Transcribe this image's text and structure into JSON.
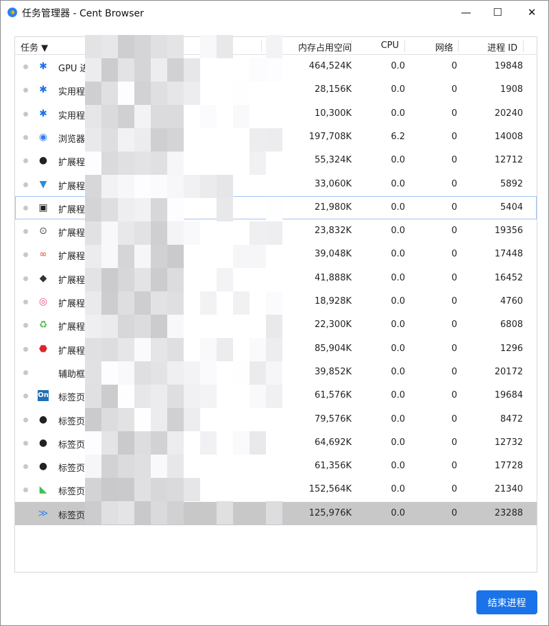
{
  "window": {
    "title": "任务管理器 - Cent Browser",
    "minimize": "—",
    "maximize": "☐",
    "close": "✕"
  },
  "header": {
    "task": "任务",
    "sort_indicator": "▼",
    "memory": "内存占用空间",
    "cpu": "CPU",
    "network": "网络",
    "pid": "进程 ID"
  },
  "rows": [
    {
      "icon": "puzzle-icon",
      "glyph": "✱",
      "color": "#1a73e8",
      "name": "GPU 进程",
      "mem": "464,524K",
      "cpu": "0.0",
      "net": "0",
      "pid": "19848"
    },
    {
      "icon": "puzzle-icon",
      "glyph": "✱",
      "color": "#1a73e8",
      "name": "实用程序：",
      "mem": "28,156K",
      "cpu": "0.0",
      "net": "0",
      "pid": "1908"
    },
    {
      "icon": "puzzle-icon",
      "glyph": "✱",
      "color": "#1a73e8",
      "name": "实用程序：",
      "mem": "10,300K",
      "cpu": "0.0",
      "net": "0",
      "pid": "20240"
    },
    {
      "icon": "cent-browser-icon",
      "glyph": "◉",
      "color": "#2f7cf6",
      "name": "浏览器",
      "mem": "197,708K",
      "cpu": "6.2",
      "net": "0",
      "pid": "14008"
    },
    {
      "icon": "extension-icon",
      "glyph": "●",
      "color": "#222",
      "name": "扩展程序：",
      "mem": "55,324K",
      "cpu": "0.0",
      "net": "0",
      "pid": "12712"
    },
    {
      "icon": "extension-icon",
      "glyph": "▼",
      "color": "#2a8bd8",
      "name": "扩展程序：",
      "mem": "33,060K",
      "cpu": "0.0",
      "net": "0",
      "pid": "5892"
    },
    {
      "icon": "monitor-icon",
      "glyph": "▣",
      "color": "#222",
      "name": "扩展程序：",
      "mem": "21,980K",
      "cpu": "0.0",
      "net": "0",
      "pid": "5404"
    },
    {
      "icon": "code-icon",
      "glyph": "⊙",
      "color": "#444",
      "name": "扩展程序：",
      "mem": "23,832K",
      "cpu": "0.0",
      "net": "0",
      "pid": "19356"
    },
    {
      "icon": "infinity-icon",
      "glyph": "∞",
      "color": "#e8452c",
      "name": "扩展程序：",
      "mem": "39,048K",
      "cpu": "0.0",
      "net": "0",
      "pid": "17448"
    },
    {
      "icon": "extension-icon",
      "glyph": "◆",
      "color": "#333",
      "name": "扩展程序：",
      "mem": "41,888K",
      "cpu": "0.0",
      "net": "0",
      "pid": "16452"
    },
    {
      "icon": "color-ring-icon",
      "glyph": "◎",
      "color": "#e84a8a",
      "name": "扩展程序：",
      "mem": "18,928K",
      "cpu": "0.0",
      "net": "0",
      "pid": "4760"
    },
    {
      "icon": "recycle-icon",
      "glyph": "♻",
      "color": "#5cb85c",
      "name": "扩展程序：",
      "mem": "22,300K",
      "cpu": "0.0",
      "net": "0",
      "pid": "6808"
    },
    {
      "icon": "adblock-icon",
      "glyph": "⬣",
      "color": "#d9262c",
      "name": "扩展程序：",
      "mem": "85,904K",
      "cpu": "0.0",
      "net": "0",
      "pid": "1296"
    },
    {
      "icon": "",
      "glyph": "",
      "color": "#fff",
      "name": "辅助框架：",
      "mem": "39,852K",
      "cpu": "0.0",
      "net": "0",
      "pid": "20172"
    },
    {
      "icon": "on-icon",
      "glyph": "On",
      "color": "#1f6fb5",
      "name": "标签页：P",
      "mem": "61,576K",
      "cpu": "0.0",
      "net": "0",
      "pid": "19684"
    },
    {
      "icon": "github-icon",
      "glyph": "●",
      "color": "#222",
      "name": "标签页：J",
      "mem": "79,576K",
      "cpu": "0.0",
      "net": "0",
      "pid": "8472"
    },
    {
      "icon": "github-icon",
      "glyph": "●",
      "color": "#222",
      "name": "标签页：c",
      "mem": "64,692K",
      "cpu": "0.0",
      "net": "0",
      "pid": "12732"
    },
    {
      "icon": "github-icon",
      "glyph": "●",
      "color": "#222",
      "name": "标签页：B",
      "mem": "61,356K",
      "cpu": "0.0",
      "net": "0",
      "pid": "17728"
    },
    {
      "icon": "bird-icon",
      "glyph": "◣",
      "color": "#3cc44a",
      "name": "标签页：我",
      "mem": "152,564K",
      "cpu": "0.0",
      "net": "0",
      "pid": "21340"
    },
    {
      "icon": "layers-icon",
      "glyph": "≫",
      "color": "#3a8bf0",
      "name": "标签页：从",
      "mem": "125,976K",
      "cpu": "0.0",
      "net": "0",
      "pid": "23288"
    }
  ],
  "end_process_button": "结束进程"
}
